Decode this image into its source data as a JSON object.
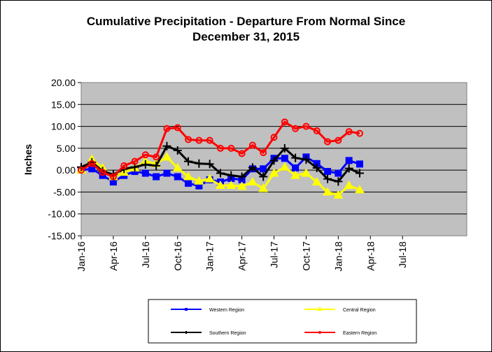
{
  "chart_data": {
    "type": "line",
    "title_line1": "Cumulative Precipitation - Departure From Normal Since",
    "title_line2": "December 31, 2015",
    "ylabel": "Inches",
    "xlabel": "",
    "ylim": [
      -15,
      20
    ],
    "yticks": [
      "20.00",
      "15.00",
      "10.00",
      "5.00",
      "0.00",
      "-5.00",
      "-10.00",
      "-15.00"
    ],
    "xticks": [
      "Jan-16",
      "Apr-16",
      "Jul-16",
      "Oct-16",
      "Jan-17",
      "Apr-17",
      "Jul-17",
      "Oct-17",
      "Jan-18",
      "Apr-18",
      "Jul-18"
    ],
    "x_range_months": [
      0,
      36
    ],
    "grid": "horizontal",
    "plot_background": "#c0c0c0",
    "legend_position": "bottom",
    "series": [
      {
        "name": "Western Region",
        "color": "#0000ff",
        "marker": "square",
        "values": [
          0.0,
          0.3,
          -1.2,
          -2.7,
          -1.2,
          -0.3,
          -0.7,
          -1.5,
          -0.7,
          -1.5,
          -3.0,
          -3.6,
          -2.2,
          -2.7,
          -1.9,
          -2.2,
          0.3,
          0.3,
          2.7,
          2.7,
          0.5,
          3.0,
          1.5,
          -0.3,
          -0.7,
          2.2,
          1.4
        ]
      },
      {
        "name": "Central Region",
        "color": "#ffff00",
        "marker": "triangle",
        "values": [
          0.0,
          2.5,
          0.5,
          -1.5,
          -0.5,
          0.5,
          2.0,
          1.5,
          3.0,
          0.5,
          -1.5,
          -2.5,
          -2.0,
          -3.5,
          -3.5,
          -3.7,
          -2.7,
          -4.2,
          -0.7,
          0.7,
          -1.2,
          -0.7,
          -2.7,
          -5.0,
          -5.7,
          -3.5,
          -4.5
        ]
      },
      {
        "name": "Southern Region",
        "color": "#000000",
        "marker": "plus",
        "values": [
          0.7,
          1.8,
          -0.2,
          -1.0,
          0.3,
          0.7,
          1.3,
          1.0,
          5.5,
          4.5,
          2.0,
          1.5,
          1.4,
          -0.7,
          -1.2,
          -1.5,
          0.6,
          -1.5,
          2.2,
          5.0,
          2.8,
          2.4,
          0.5,
          -2.0,
          -2.6,
          0.4,
          -0.7
        ]
      },
      {
        "name": "Eastern Region",
        "color": "#ff0000",
        "marker": "circle",
        "values": [
          0.0,
          1.5,
          -0.5,
          -1.5,
          1.0,
          2.0,
          3.5,
          3.0,
          9.5,
          9.7,
          7.0,
          6.8,
          6.8,
          5.0,
          5.0,
          3.8,
          5.7,
          4.0,
          7.5,
          11.0,
          9.5,
          10.0,
          9.0,
          6.5,
          6.8,
          8.8,
          8.4
        ]
      }
    ]
  }
}
